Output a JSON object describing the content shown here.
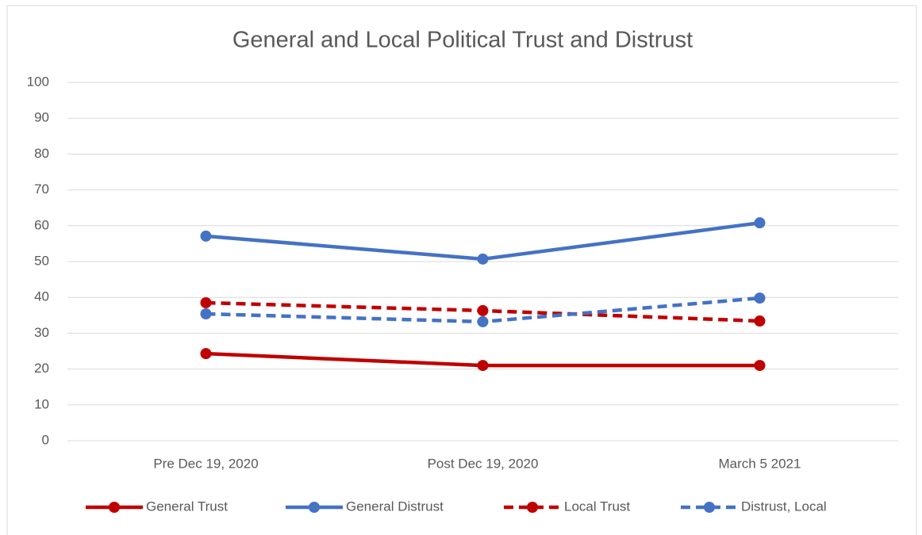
{
  "chart_data": {
    "type": "line",
    "title": "General and Local Political Trust and Distrust",
    "categories": [
      "Pre Dec 19, 2020",
      "Post Dec 19, 2020",
      "March 5 2021"
    ],
    "series": [
      {
        "name": "General Trust",
        "color": "#c00000",
        "dash": false,
        "values": [
          24.3,
          21.0,
          21.0
        ]
      },
      {
        "name": "General Distrust",
        "color": "#4472c4",
        "dash": false,
        "values": [
          57.1,
          50.7,
          60.8
        ]
      },
      {
        "name": "Local Trust",
        "color": "#c00000",
        "dash": true,
        "values": [
          38.5,
          36.3,
          33.4
        ]
      },
      {
        "name": "Distrust, Local",
        "color": "#4472c4",
        "dash": true,
        "values": [
          35.4,
          33.2,
          39.8
        ]
      }
    ],
    "ylim": [
      0,
      100
    ],
    "yticks": [
      0,
      10,
      20,
      30,
      40,
      50,
      60,
      70,
      80,
      90,
      100
    ],
    "grid": true,
    "legend": "bottom"
  }
}
